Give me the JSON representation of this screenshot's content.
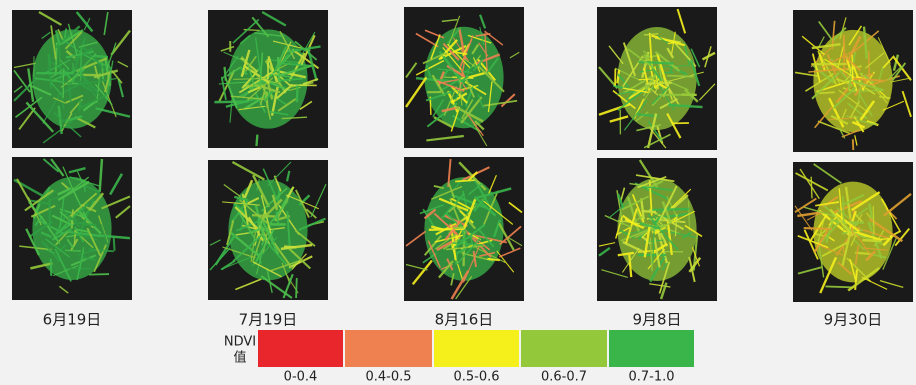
{
  "dates": [
    "6月19日",
    "7月19日",
    "8月16日",
    "9月8日",
    "9月30日"
  ],
  "legend": {
    "title": [
      "NDVI",
      "值"
    ],
    "items": [
      {
        "label": "0-0.4",
        "color": "#e8262b"
      },
      {
        "label": "0.4-0.5",
        "color": "#ef8150"
      },
      {
        "label": "0.5-0.6",
        "color": "#f5ef1c"
      },
      {
        "label": "0.6-0.7",
        "color": "#93c83a"
      },
      {
        "label": "0.7-1.0",
        "color": "#3ab54a"
      }
    ]
  }
}
